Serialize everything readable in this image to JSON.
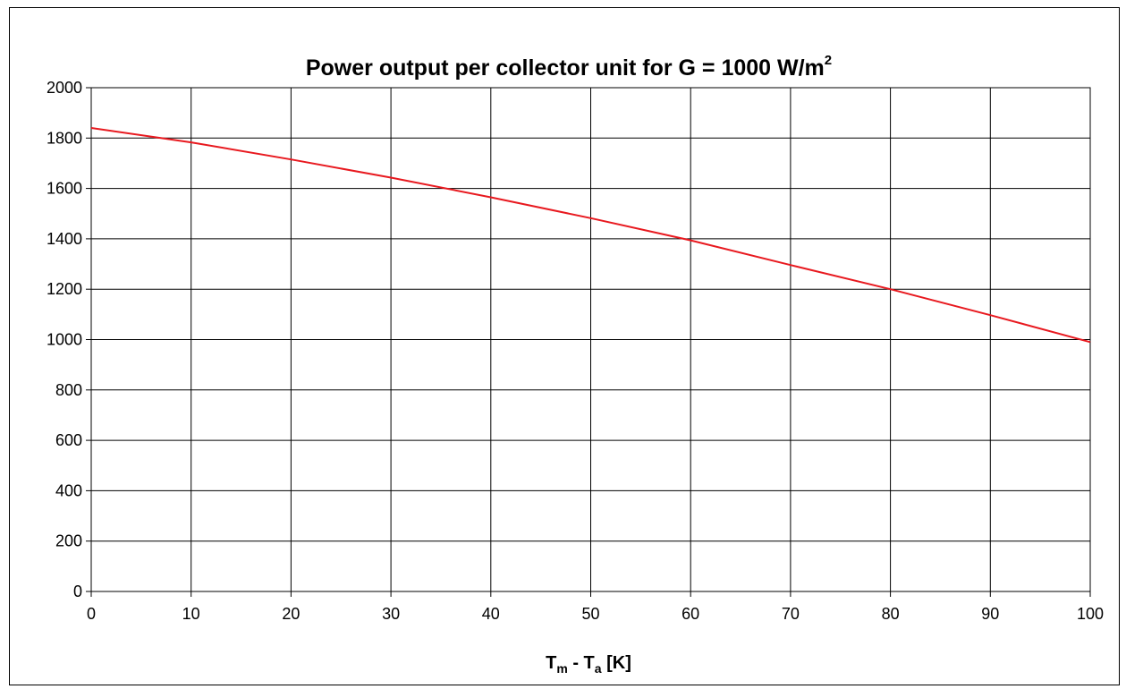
{
  "chart_data": {
    "type": "line",
    "title": "Power output per collector unit for G = 1000 W/m",
    "title_superscript": "2",
    "xlabel_parts": [
      "T",
      "m",
      " - T",
      "a",
      " [K]"
    ],
    "ylabel": "",
    "xlim": [
      0,
      100
    ],
    "ylim": [
      0,
      2000
    ],
    "x_ticks": [
      0,
      10,
      20,
      30,
      40,
      50,
      60,
      70,
      80,
      90,
      100
    ],
    "y_ticks": [
      0,
      200,
      400,
      600,
      800,
      1000,
      1200,
      1400,
      1600,
      1800,
      2000
    ],
    "grid": true,
    "legend": "none",
    "series": [
      {
        "color": "#e8191f",
        "x": [
          0,
          10,
          20,
          30,
          40,
          50,
          60,
          70,
          80,
          90,
          100
        ],
        "y": [
          1840,
          1783,
          1715,
          1643,
          1565,
          1482,
          1394,
          1296,
          1200,
          1097,
          990
        ]
      }
    ]
  }
}
